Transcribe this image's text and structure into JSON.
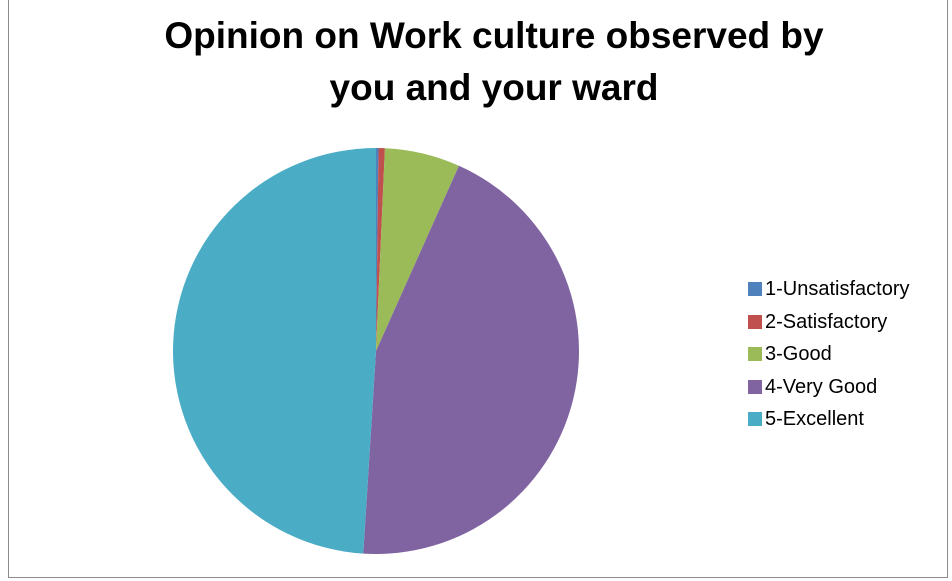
{
  "chart_data": {
    "type": "pie",
    "title": "Opinion on  Work culture observed by you and your ward",
    "title_lines": [
      "Opinion on  Work culture observed by",
      "you and your ward"
    ],
    "categories": [
      "1-Unsatisfactory",
      "2-Satisfactory",
      "3-Good",
      "4-Very Good",
      "5-Excellent"
    ],
    "values": [
      0.2,
      0.5,
      6.0,
      44.3,
      49.0
    ],
    "colors": [
      "#4f81bd",
      "#c0504d",
      "#9bbb59",
      "#8064a2",
      "#4bacc6"
    ],
    "legend": "right",
    "start_angle": "top, clockwise"
  }
}
